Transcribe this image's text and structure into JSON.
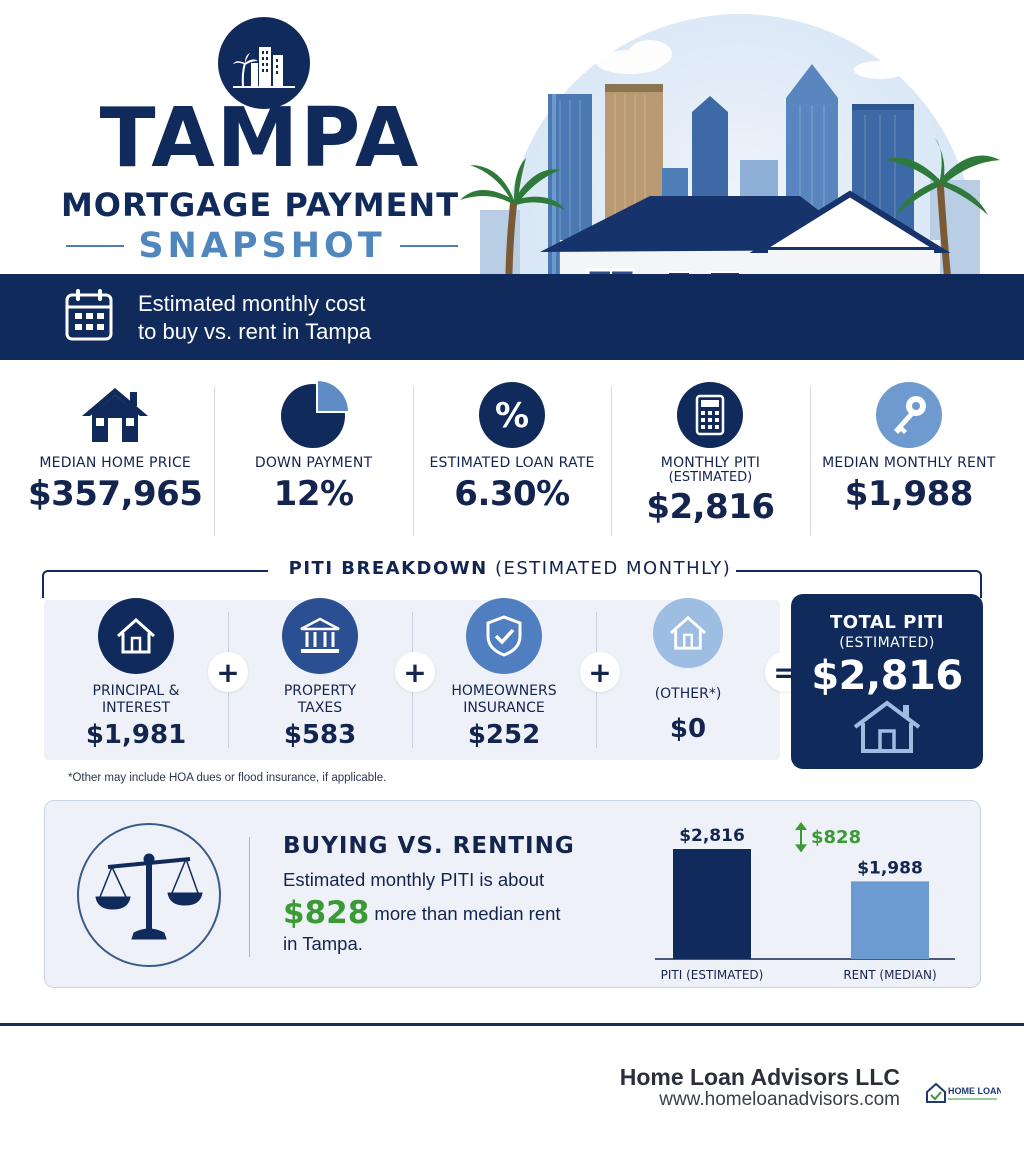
{
  "hero": {
    "title": "TAMPA",
    "subtitle": "MORTGAGE PAYMENT",
    "subtitle2": "SNAPSHOT",
    "band_line1": "Estimated monthly cost",
    "band_line2": "to buy vs. rent in Tampa",
    "icons": [
      "city-logo-icon",
      "calendar-icon",
      "city-skyline",
      "house-illustration",
      "palm-tree-icon"
    ]
  },
  "stats": [
    {
      "label": "MEDIAN HOME PRICE",
      "label2": "",
      "value": "$357,965",
      "icon": "house-icon"
    },
    {
      "label": "DOWN PAYMENT",
      "label2": "",
      "value": "12%",
      "icon": "pie-chart-icon"
    },
    {
      "label": "ESTIMATED LOAN RATE",
      "label2": "",
      "value": "6.30%",
      "icon": "percent-icon"
    },
    {
      "label": "MONTHLY PITI",
      "label2": "(ESTIMATED)",
      "value": "$2,816",
      "icon": "calculator-icon"
    },
    {
      "label": "MEDIAN MONTHLY RENT",
      "label2": "",
      "value": "$1,988",
      "icon": "key-icon"
    }
  ],
  "piti": {
    "title_bold": "PITI BREAKDOWN",
    "title_rest": " (ESTIMATED MONTHLY)",
    "items": [
      {
        "label": "PRINCIPAL &\nINTEREST",
        "value": "$1,981",
        "icon": "house-outline-icon",
        "color": "#112a5c"
      },
      {
        "label": "PROPERTY\nTAXES",
        "value": "$583",
        "icon": "bank-icon",
        "color": "#2a4f92"
      },
      {
        "label": "HOMEOWNERS\nINSURANCE",
        "value": "$252",
        "icon": "shield-check-icon",
        "color": "#4f7fc0"
      },
      {
        "label": "(OTHER*)",
        "value": "$0",
        "icon": "house-outline-icon",
        "color": "#9dbde3"
      }
    ],
    "operators": [
      "+",
      "+",
      "+",
      "="
    ],
    "total_label": "TOTAL PITI",
    "total_sub": "(ESTIMATED)",
    "total_value": "$2,816",
    "footnote": "*Other may include HOA dues or flood insurance, if applicable."
  },
  "compare": {
    "title": "BUYING VS. RENTING",
    "line1": "Estimated monthly PITI is about",
    "diff": "$828",
    "line2_rest": " more than median rent",
    "line3": "in Tampa.",
    "icon": "balance-scale-icon"
  },
  "chart_data": {
    "type": "bar",
    "categories": [
      "PITI (ESTIMATED)",
      "RENT (MEDIAN)"
    ],
    "values": [
      2816,
      1988
    ],
    "value_labels": [
      "$2,816",
      "$1,988"
    ],
    "difference_label": "$828",
    "colors": [
      "#112a5c",
      "#6b9bd1"
    ],
    "accent": "#3b9a35"
  },
  "footer": {
    "company": "Home Loan Advisors LLC",
    "url": "www.homeloanadvisors.com",
    "logo_text": "HOME LOAN"
  }
}
